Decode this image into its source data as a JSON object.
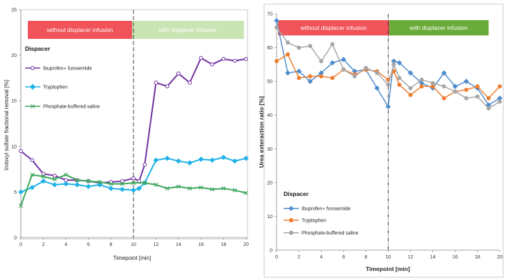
{
  "chart_data": [
    {
      "type": "line",
      "id": "left",
      "title": "",
      "xlabel": "Timepoint [min]",
      "ylabel": "Indoxyl sulfate fractional removal [%]",
      "xlim": [
        0,
        20
      ],
      "ylim": [
        0,
        25
      ],
      "xticks": [
        0,
        2,
        4,
        6,
        8,
        10,
        12,
        14,
        16,
        18,
        20
      ],
      "yticks": [
        0,
        5,
        10,
        15,
        20,
        25
      ],
      "grid": false,
      "divider_x": 10,
      "phase_labels": [
        "without displacer infusion",
        "with displacer infusion"
      ],
      "phase_colors": [
        "#f0545a",
        "#c9e5b4"
      ],
      "legend_title": "Dispacer",
      "legend_position": "top-left",
      "series": [
        {
          "name": "Ibuprofen+ furosemide",
          "color": "#7030a0",
          "marker": "circle",
          "x": [
            0,
            1,
            2,
            3,
            4,
            5,
            6,
            7,
            8,
            9,
            10,
            10.5,
            11,
            12,
            13,
            14,
            15,
            16,
            17,
            18,
            19,
            20
          ],
          "values": [
            9.5,
            8.5,
            7.0,
            6.8,
            6.3,
            6.3,
            6.2,
            6.0,
            6.1,
            6.2,
            6.5,
            6.2,
            8.0,
            17.0,
            16.6,
            18.0,
            17.0,
            19.7,
            19.0,
            19.6,
            19.4,
            19.6
          ]
        },
        {
          "name": "Tryptophen",
          "color": "#1fb2e6",
          "marker": "diamond",
          "x": [
            0,
            1,
            2,
            3,
            4,
            5,
            6,
            7,
            8,
            9,
            10,
            10.5,
            11,
            12,
            13,
            14,
            15,
            16,
            17,
            18,
            19,
            20
          ],
          "values": [
            5.0,
            5.5,
            6.2,
            5.8,
            5.9,
            5.8,
            5.6,
            5.8,
            5.4,
            5.3,
            5.2,
            5.4,
            6.0,
            8.5,
            8.7,
            8.4,
            8.2,
            8.6,
            8.5,
            8.8,
            8.4,
            8.7
          ]
        },
        {
          "name": "Phosphate-buffered saline",
          "color": "#3aa55a",
          "marker": "x",
          "x": [
            0,
            1,
            2,
            3,
            4,
            5,
            6,
            7,
            8,
            9,
            10,
            11,
            12,
            13,
            14,
            15,
            16,
            17,
            18,
            19,
            20
          ],
          "values": [
            3.5,
            6.9,
            6.7,
            6.4,
            6.9,
            6.3,
            6.2,
            6.1,
            5.9,
            5.9,
            6.0,
            6.0,
            5.8,
            5.4,
            5.6,
            5.4,
            5.5,
            5.3,
            5.4,
            5.2,
            4.9
          ]
        }
      ]
    },
    {
      "type": "line",
      "id": "right",
      "title": "",
      "xlabel": "Timepoint [min]",
      "ylabel": "Urea exteraction ratio [%]",
      "xlim": [
        0,
        20
      ],
      "ylim": [
        0,
        70
      ],
      "xticks": [
        0,
        2,
        4,
        6,
        8,
        10,
        12,
        14,
        16,
        18,
        20
      ],
      "yticks": [
        0,
        10,
        20,
        30,
        40,
        50,
        60,
        70
      ],
      "grid": false,
      "divider_x": 10,
      "phase_labels": [
        "without displacer infusion",
        "with displacer infusion"
      ],
      "phase_colors": [
        "#f0545a",
        "#6aab3a"
      ],
      "legend_title": "Dispacer",
      "legend_position": "bottom-left",
      "series": [
        {
          "name": "Ibuprofen+ furosemide",
          "color": "#4f8ccd",
          "marker": "diamond",
          "x": [
            0,
            1,
            2,
            3,
            4,
            5,
            6,
            7,
            8,
            9,
            10,
            10.5,
            11,
            12,
            13,
            14,
            15,
            16,
            17,
            18,
            19,
            20
          ],
          "values": [
            68.0,
            52.5,
            53.0,
            50.0,
            52.5,
            55.5,
            56.5,
            53.0,
            53.5,
            48.0,
            42.5,
            56.0,
            55.5,
            52.5,
            49.5,
            48.0,
            52.5,
            48.5,
            50.0,
            48.0,
            43.0,
            45.0
          ]
        },
        {
          "name": "Tryptophen",
          "color": "#ed7d31",
          "marker": "circle",
          "x": [
            0,
            1,
            2,
            3,
            4,
            5,
            6,
            7,
            8,
            9,
            10,
            10.5,
            11,
            12,
            13,
            14,
            15,
            16,
            17,
            18,
            19,
            20
          ],
          "values": [
            56.0,
            58.0,
            51.0,
            51.5,
            51.5,
            51.0,
            53.5,
            52.0,
            53.5,
            53.0,
            50.5,
            53.0,
            49.0,
            46.0,
            48.5,
            48.5,
            45.0,
            47.0,
            47.5,
            48.5,
            45.0,
            48.5
          ]
        },
        {
          "name": "Phosphate-buffered saline",
          "color": "#a6a6a6",
          "marker": "circle",
          "x": [
            0,
            1,
            2,
            3,
            4,
            5,
            6,
            7,
            8,
            9,
            10,
            10.5,
            11,
            12,
            13,
            14,
            15,
            16,
            17,
            18,
            19,
            20
          ],
          "values": [
            66.0,
            61.5,
            60.0,
            60.5,
            56.0,
            61.0,
            53.5,
            51.5,
            54.0,
            52.5,
            49.0,
            55.0,
            51.0,
            48.0,
            50.5,
            49.5,
            48.5,
            47.0,
            45.0,
            45.5,
            42.0,
            44.0
          ]
        }
      ]
    }
  ]
}
